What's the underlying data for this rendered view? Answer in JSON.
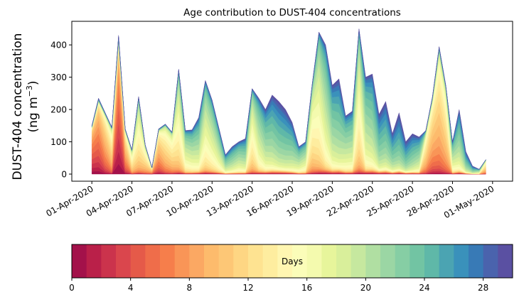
{
  "chart_data": {
    "type": "area",
    "stacked": true,
    "title": "Age contribution to DUST-404 concentrations",
    "ylabel_line1": "DUST-404 concentration",
    "ylabel_line2": "(ng m",
    "ylabel_sup": "−3",
    "ylabel_close": ")",
    "xlabel": "",
    "ylim": [
      -22,
      473
    ],
    "yticks": [
      0,
      100,
      200,
      300,
      400
    ],
    "x_start": "2020-04-01T00:00",
    "x_step_hours": 12,
    "x_range_days": [
      -1.5,
      31.5
    ],
    "xticks": [
      {
        "day": 0,
        "label": "01-Apr-2020"
      },
      {
        "day": 3,
        "label": "04-Apr-2020"
      },
      {
        "day": 6,
        "label": "07-Apr-2020"
      },
      {
        "day": 9,
        "label": "10-Apr-2020"
      },
      {
        "day": 12,
        "label": "13-Apr-2020"
      },
      {
        "day": 15,
        "label": "16-Apr-2020"
      },
      {
        "day": 18,
        "label": "19-Apr-2020"
      },
      {
        "day": 21,
        "label": "22-Apr-2020"
      },
      {
        "day": 24,
        "label": "25-Apr-2020"
      },
      {
        "day": 27,
        "label": "28-Apr-2020"
      },
      {
        "day": 30,
        "label": "01-May-2020"
      }
    ],
    "total": [
      150,
      235,
      190,
      145,
      430,
      140,
      75,
      240,
      90,
      20,
      140,
      155,
      130,
      325,
      135,
      137,
      175,
      290,
      230,
      145,
      60,
      85,
      100,
      110,
      265,
      235,
      200,
      245,
      225,
      200,
      160,
      85,
      100,
      280,
      440,
      400,
      275,
      295,
      180,
      195,
      450,
      300,
      310,
      185,
      225,
      125,
      190,
      100,
      125,
      115,
      135,
      240,
      395,
      275,
      100,
      200,
      70,
      25,
      15,
      45
    ],
    "dominant_age_days": [
      5,
      6,
      9,
      12,
      4,
      9,
      14,
      15,
      13,
      10,
      9,
      12,
      13,
      16,
      19,
      20,
      21,
      18,
      19,
      20,
      22,
      22,
      21,
      22,
      16,
      20,
      22,
      23,
      24,
      24,
      23,
      21,
      20,
      15,
      17,
      20,
      22,
      23,
      21,
      21,
      16,
      21,
      22,
      24,
      24,
      24,
      25,
      25,
      24,
      22,
      12,
      10,
      11,
      12,
      20,
      22,
      24,
      24,
      20,
      12
    ],
    "colorbar": {
      "label": "Days",
      "range": [
        0,
        30
      ],
      "ticks": [
        0,
        4,
        8,
        12,
        16,
        20,
        24,
        28
      ],
      "colors": [
        "#a3114a",
        "#ba2049",
        "#cb334c",
        "#da464d",
        "#e55a49",
        "#ef6d4a",
        "#f67e4b",
        "#f99557",
        "#fba863",
        "#fdbb6c",
        "#fdc776",
        "#fed683",
        "#fee391",
        "#feed9f",
        "#fff6b1",
        "#fbfdb9",
        "#f4faae",
        "#e7f59b",
        "#d9ef9b",
        "#c6e89f",
        "#b0dfa2",
        "#9bd6a4",
        "#86cea4",
        "#72c4a3",
        "#5fb8a8",
        "#4ba4b2",
        "#3a91bb",
        "#387ab6",
        "#4a63ad",
        "#5a50a2"
      ]
    }
  }
}
